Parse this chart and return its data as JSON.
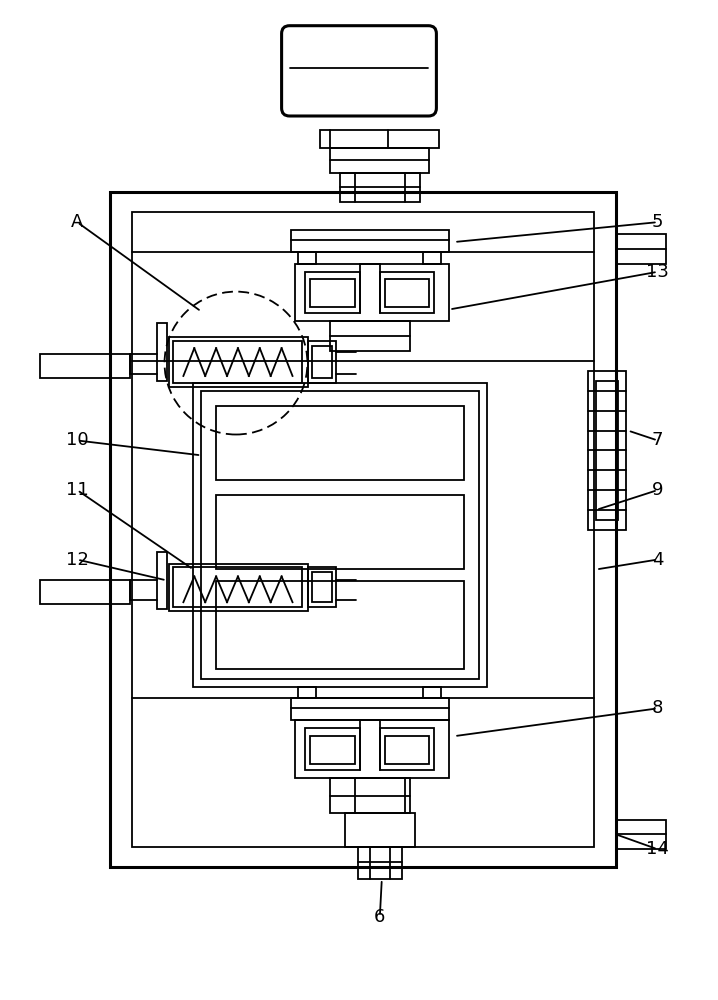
{
  "bg_color": "#ffffff",
  "lc": "#000000",
  "lw": 1.3,
  "lw2": 2.2,
  "fig_w": 7.18,
  "fig_h": 10.0
}
